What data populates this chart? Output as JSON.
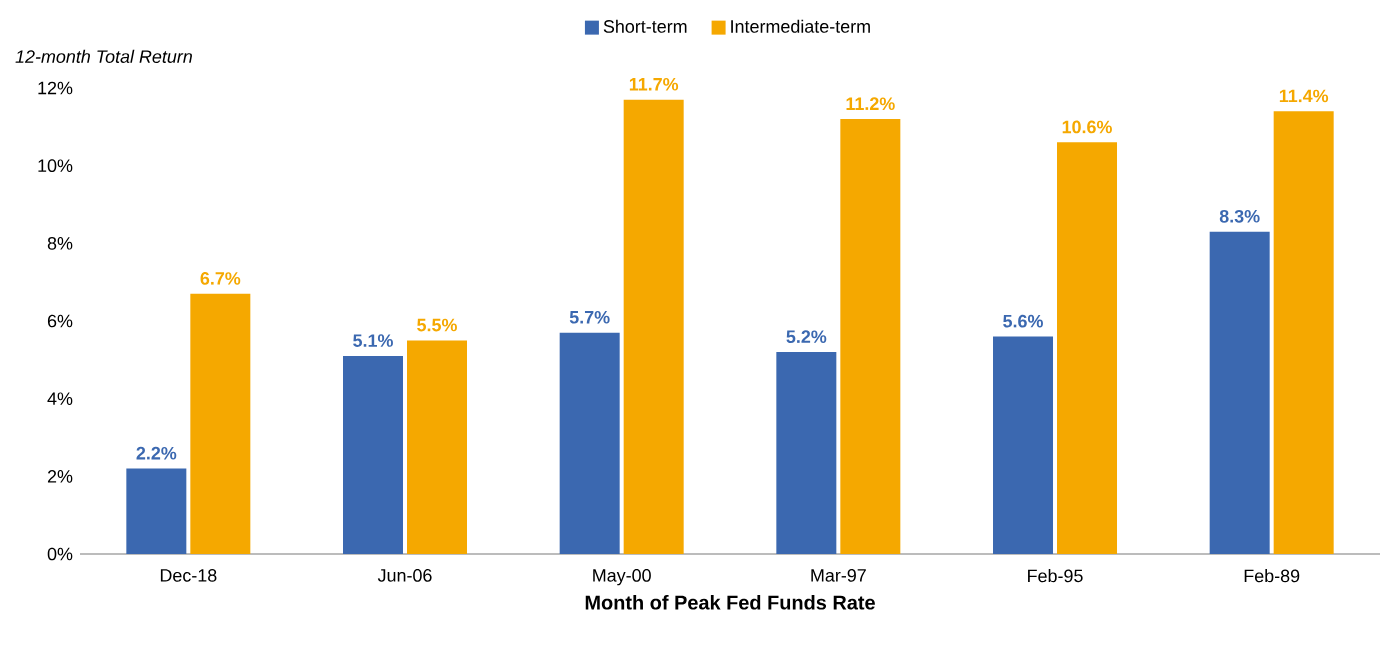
{
  "chart_data": {
    "type": "bar",
    "xlabel": "Month of Peak Fed Funds Rate",
    "ylabel": "12-month Total Return",
    "categories": [
      "Dec-18",
      "Jun-06",
      "May-00",
      "Mar-97",
      "Feb-95",
      "Feb-89"
    ],
    "series": [
      {
        "name": "Short-term",
        "color": "#3b68b0",
        "values": [
          2.2,
          5.1,
          5.7,
          5.2,
          5.6,
          8.3
        ],
        "value_labels": [
          "2.2%",
          "5.1%",
          "5.7%",
          "5.2%",
          "5.6%",
          "8.3%"
        ]
      },
      {
        "name": "Intermediate-term",
        "color": "#f5a800",
        "values": [
          6.7,
          5.5,
          11.7,
          11.2,
          10.6,
          11.4
        ],
        "value_labels": [
          "6.7%",
          "5.5%",
          "11.7%",
          "11.2%",
          "10.6%",
          "11.4%"
        ]
      }
    ],
    "ylim": [
      0,
      12
    ],
    "yticks": [
      {
        "value": 0,
        "label": "0%"
      },
      {
        "value": 2,
        "label": "2%"
      },
      {
        "value": 4,
        "label": "4%"
      },
      {
        "value": 6,
        "label": "6%"
      },
      {
        "value": 8,
        "label": "8%"
      },
      {
        "value": 10,
        "label": "10%"
      },
      {
        "value": 12,
        "label": "12%"
      }
    ],
    "legend": "top"
  }
}
